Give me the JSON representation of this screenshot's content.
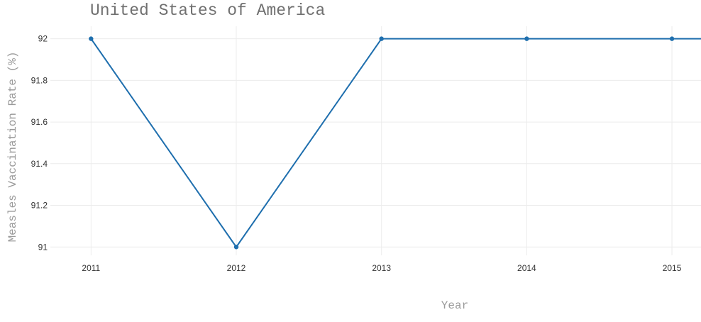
{
  "chart_data": {
    "type": "line",
    "title": "United States of America",
    "xlabel": "Year",
    "ylabel": "Measles Vaccination Rate (%)",
    "x": [
      2011,
      2012,
      2013,
      2014,
      2015
    ],
    "xticks": [
      "2011",
      "2012",
      "2013",
      "2014",
      "2015"
    ],
    "yticks": [
      91,
      91.2,
      91.4,
      91.6,
      91.8,
      92
    ],
    "ytick_labels": [
      "91",
      "91.2",
      "91.4",
      "91.6",
      "91.8",
      "92"
    ],
    "xlim": [
      2010.72,
      2015.2
    ],
    "ylim": [
      90.96,
      92.06
    ],
    "series": [
      {
        "values": [
          92,
          91,
          92,
          92,
          92
        ],
        "color": "#1f6fae",
        "extends_beyond_right": 92
      }
    ],
    "grid": true,
    "legend": "none"
  }
}
